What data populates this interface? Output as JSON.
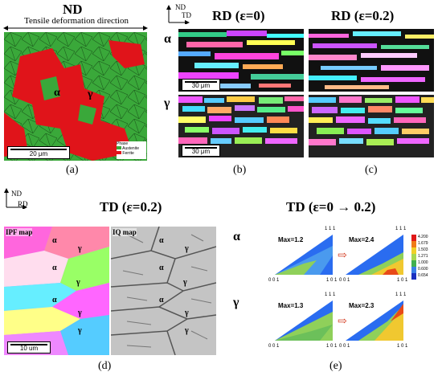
{
  "panel_a": {
    "title": "ND",
    "direction_label": "Tensile deformation direction",
    "alpha": "α",
    "gamma": "γ",
    "scale": "20 μm",
    "legend_title": "Phase",
    "legend_items": [
      "Austenite",
      "Ferrite"
    ],
    "colors": {
      "austenite": "#3aa83a",
      "ferrite": "#e0141a"
    },
    "caption": "(a)"
  },
  "axes_top": {
    "nd": "ND",
    "td": "TD"
  },
  "panel_b": {
    "title": "RD (ε=0)",
    "scale_top": "30 μm",
    "scale_bottom": "30 μm",
    "caption": "(b)"
  },
  "panel_c": {
    "title": "RD (ε=0.2)",
    "caption": "(c)"
  },
  "row_labels": {
    "alpha": "α",
    "gamma": "γ"
  },
  "panel_d": {
    "axes": {
      "nd": "ND",
      "rd": "RD"
    },
    "title": "TD (ε=0.2)",
    "ipf_label": "IPF map",
    "iq_label": "IQ map",
    "scale": "10 um",
    "caption": "(d)",
    "phase_labels": [
      "α",
      "γ",
      "α",
      "γ",
      "α",
      "γ",
      "γ"
    ]
  },
  "panel_e": {
    "title": "TD (ε=0 → 0.2)",
    "alpha": "α",
    "gamma": "γ",
    "alpha_max": [
      "Max=1.2",
      "Max=2.4"
    ],
    "gamma_max": [
      "Max=1.3",
      "Max=2.3"
    ],
    "ticks": {
      "top": "1 1 1",
      "left": "0 0 1",
      "right": "1 0 1"
    },
    "colorbar": [
      "4.200",
      "1.679",
      "1.503",
      "1.271",
      "1.000",
      "0.600",
      "0.654"
    ],
    "caption": "(e)"
  }
}
